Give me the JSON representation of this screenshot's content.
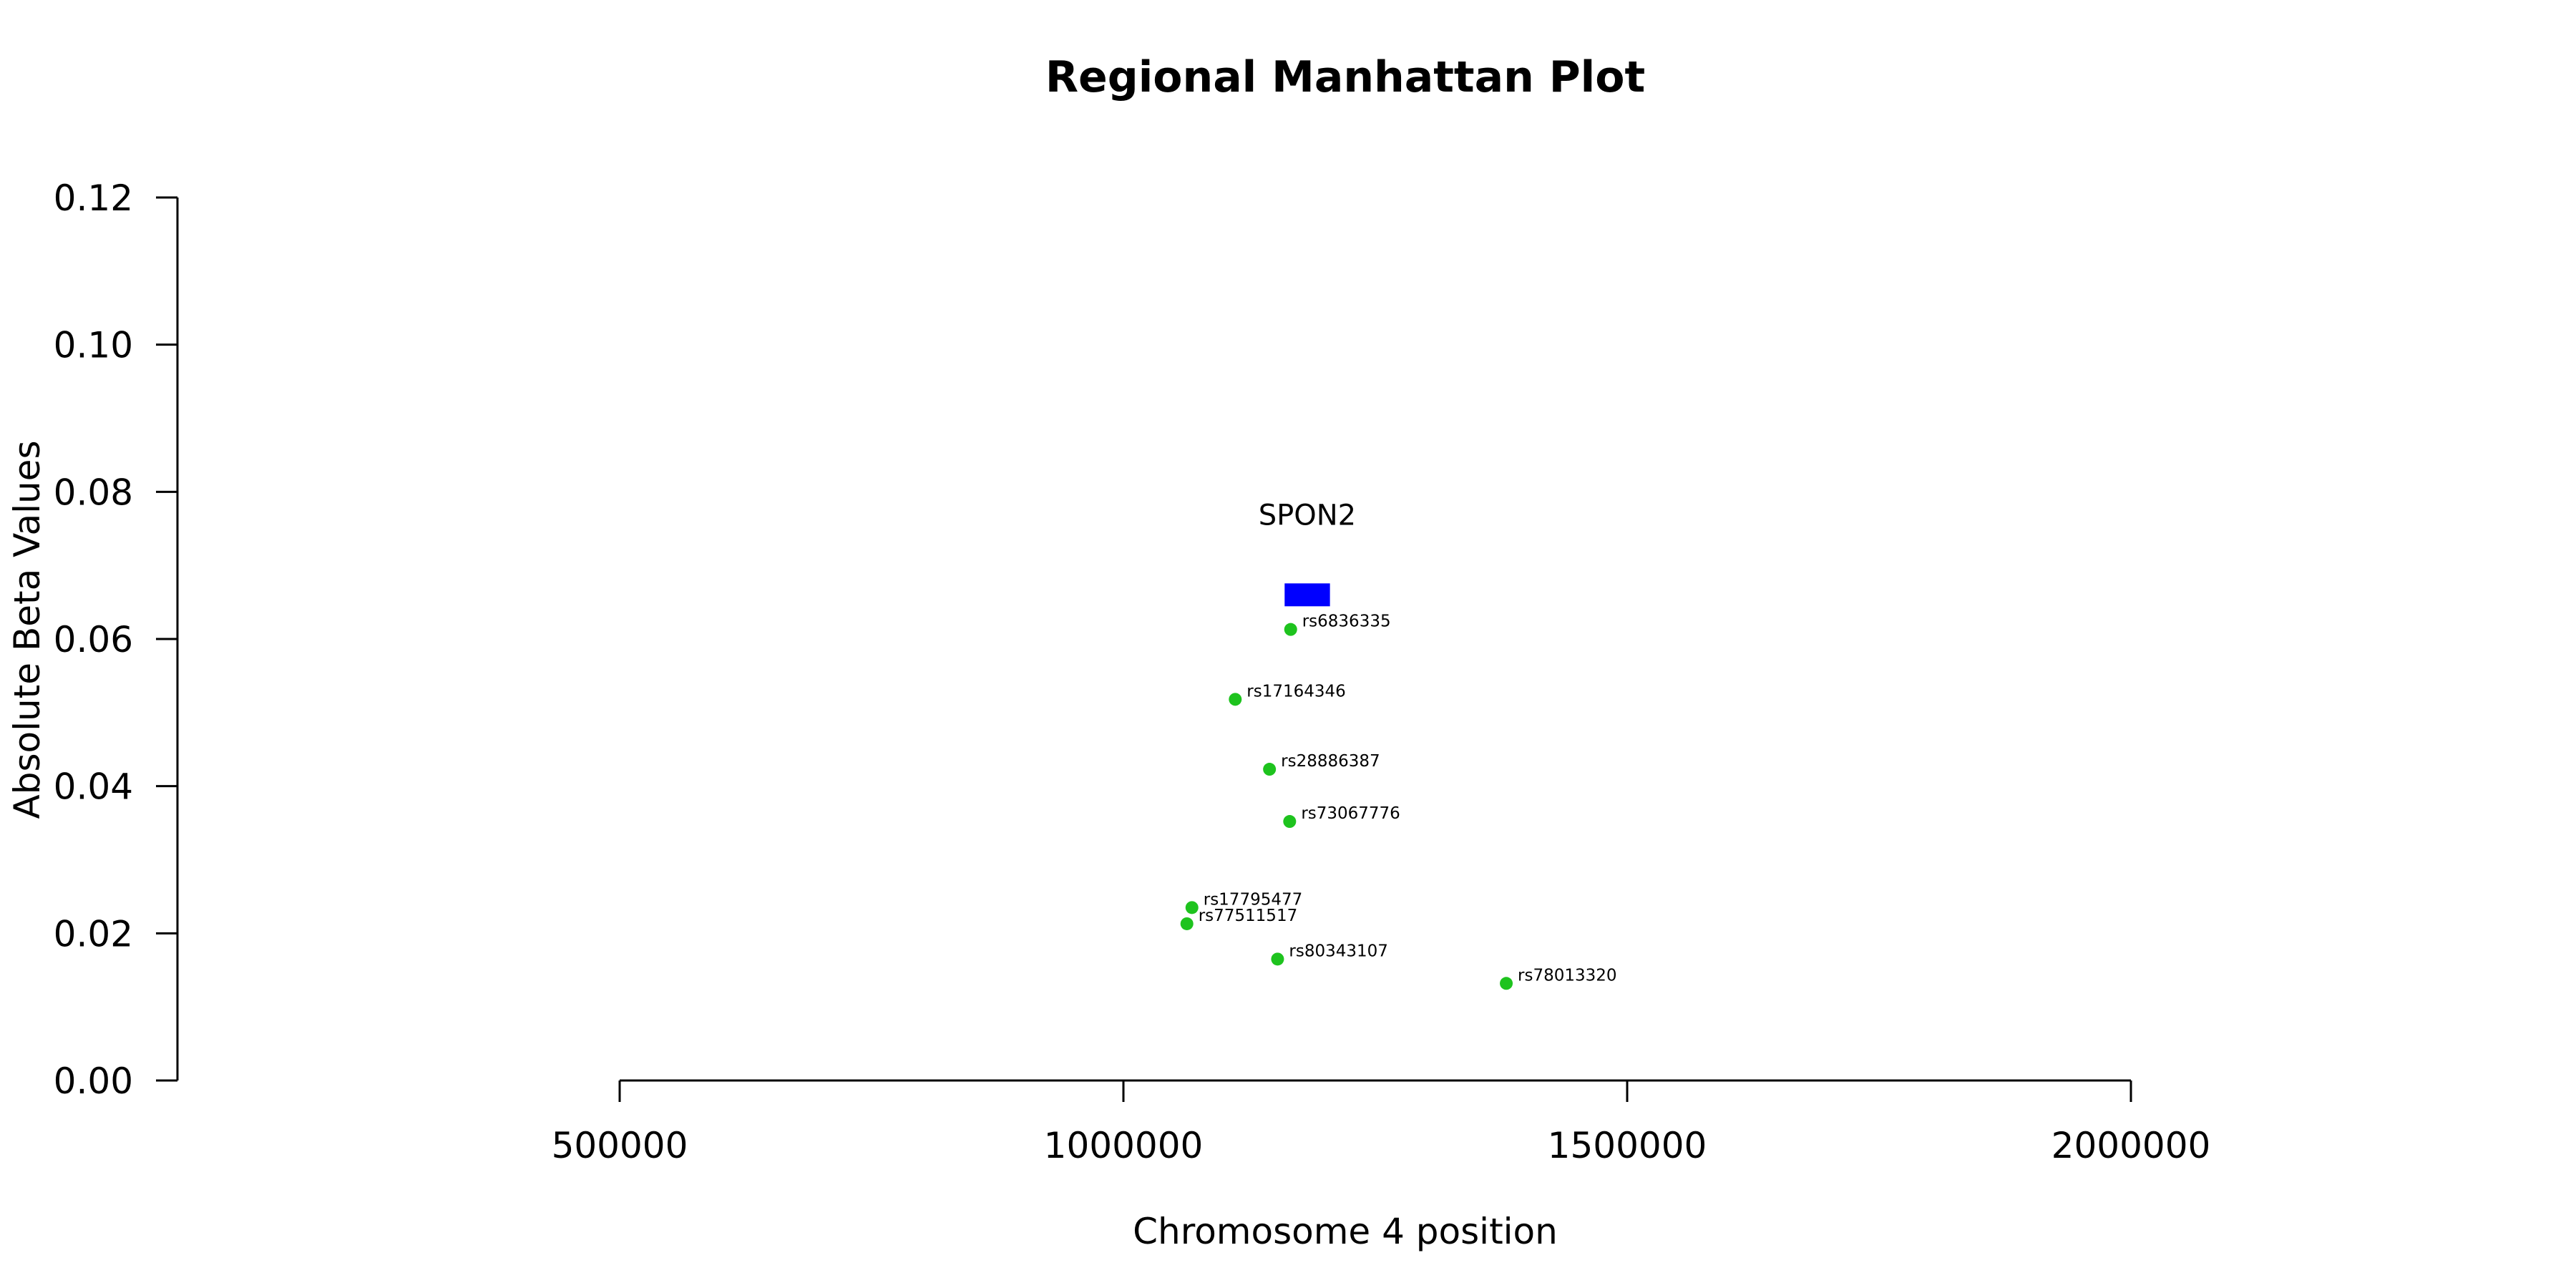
{
  "chart_data": {
    "type": "scatter",
    "title": "Regional Manhattan Plot",
    "xlabel": "Chromosome 4 position",
    "ylabel": "Absolute Beta Values",
    "xlim": [
      500000,
      2000000
    ],
    "ylim": [
      0,
      0.12
    ],
    "x_ticks": [
      "500000",
      "1000000",
      "1500000",
      "2000000"
    ],
    "y_ticks": [
      "0.00",
      "0.02",
      "0.04",
      "0.06",
      "0.08",
      "0.10",
      "0.12"
    ],
    "grid": false,
    "point_color": "#1ec31e",
    "points": [
      {
        "label": "rs6836335",
        "x": 1166000,
        "y": 0.0613
      },
      {
        "label": "rs17164346",
        "x": 1111000,
        "y": 0.0518
      },
      {
        "label": "rs28886387",
        "x": 1145000,
        "y": 0.0423
      },
      {
        "label": "rs73067776",
        "x": 1165000,
        "y": 0.0352
      },
      {
        "label": "rs17795477",
        "x": 1068000,
        "y": 0.0235
      },
      {
        "label": "rs77511517",
        "x": 1063000,
        "y": 0.0213
      },
      {
        "label": "rs80343107",
        "x": 1153000,
        "y": 0.0165
      },
      {
        "label": "rs78013320",
        "x": 1380000,
        "y": 0.0132
      }
    ],
    "genes": [
      {
        "name": "SPON2",
        "start": 1160000,
        "end": 1205000,
        "y": 0.066,
        "color": "#0000ff"
      }
    ]
  }
}
